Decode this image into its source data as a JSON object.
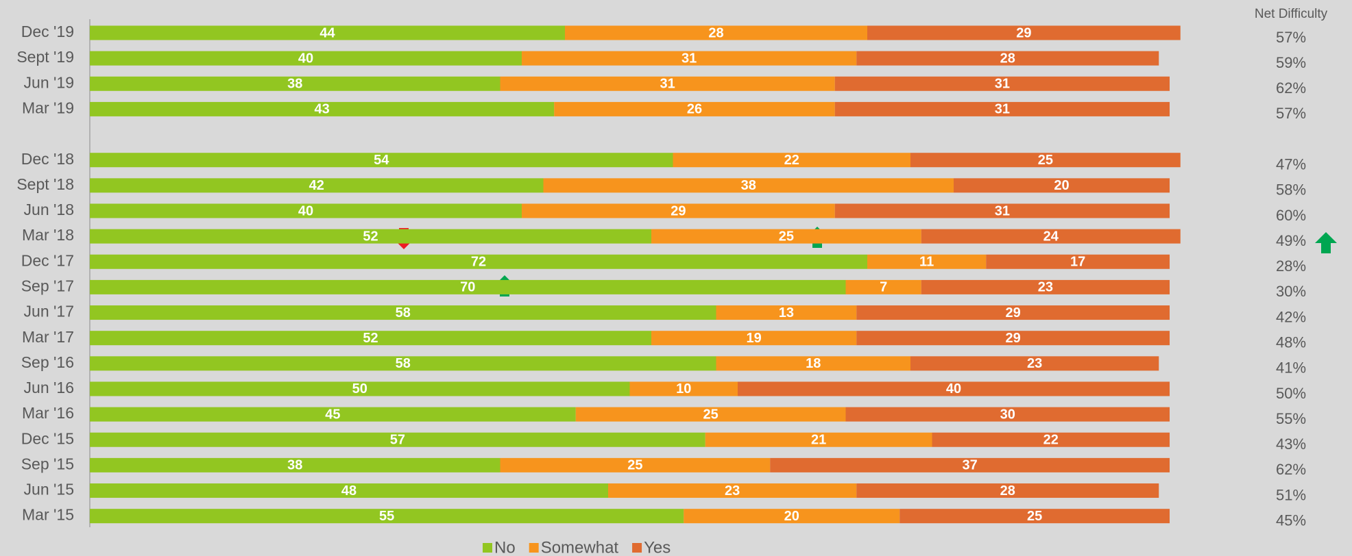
{
  "chart_data": {
    "type": "bar",
    "orientation": "horizontal",
    "stacked": true,
    "categories": [
      "Dec '19",
      "Sept '19",
      "Jun '19",
      "Mar '19",
      null,
      "Dec '18",
      "Sept '18",
      "Jun '18",
      "Mar '18",
      "Dec '17",
      "Sep '17",
      "Jun '17",
      "Mar '17",
      "Sep '16",
      "Jun '16",
      "Mar '16",
      "Dec '15",
      "Sep '15",
      "Jun '15",
      "Mar '15"
    ],
    "series": [
      {
        "name": "No",
        "color": "#92c621",
        "values": [
          44,
          40,
          38,
          43,
          null,
          54,
          42,
          40,
          52,
          72,
          70,
          58,
          52,
          58,
          50,
          45,
          57,
          38,
          48,
          55
        ]
      },
      {
        "name": "Somewhat",
        "color": "#f7941d",
        "values": [
          28,
          31,
          31,
          26,
          null,
          22,
          38,
          29,
          25,
          11,
          7,
          13,
          19,
          18,
          10,
          25,
          21,
          25,
          23,
          20
        ]
      },
      {
        "name": "Yes",
        "color": "#e06b30",
        "values": [
          29,
          28,
          31,
          31,
          null,
          25,
          20,
          31,
          24,
          17,
          23,
          29,
          29,
          23,
          40,
          30,
          22,
          37,
          28,
          25
        ]
      }
    ],
    "xlim": [
      0,
      100
    ],
    "net_difficulty": {
      "title": "Net Difficulty",
      "values": [
        "57%",
        "59%",
        "62%",
        "57%",
        null,
        "47%",
        "58%",
        "60%",
        "49%",
        "28%",
        "30%",
        "42%",
        "48%",
        "41%",
        "50%",
        "55%",
        "43%",
        "62%",
        "51%",
        "45%"
      ]
    },
    "legend": "bottom"
  }
}
